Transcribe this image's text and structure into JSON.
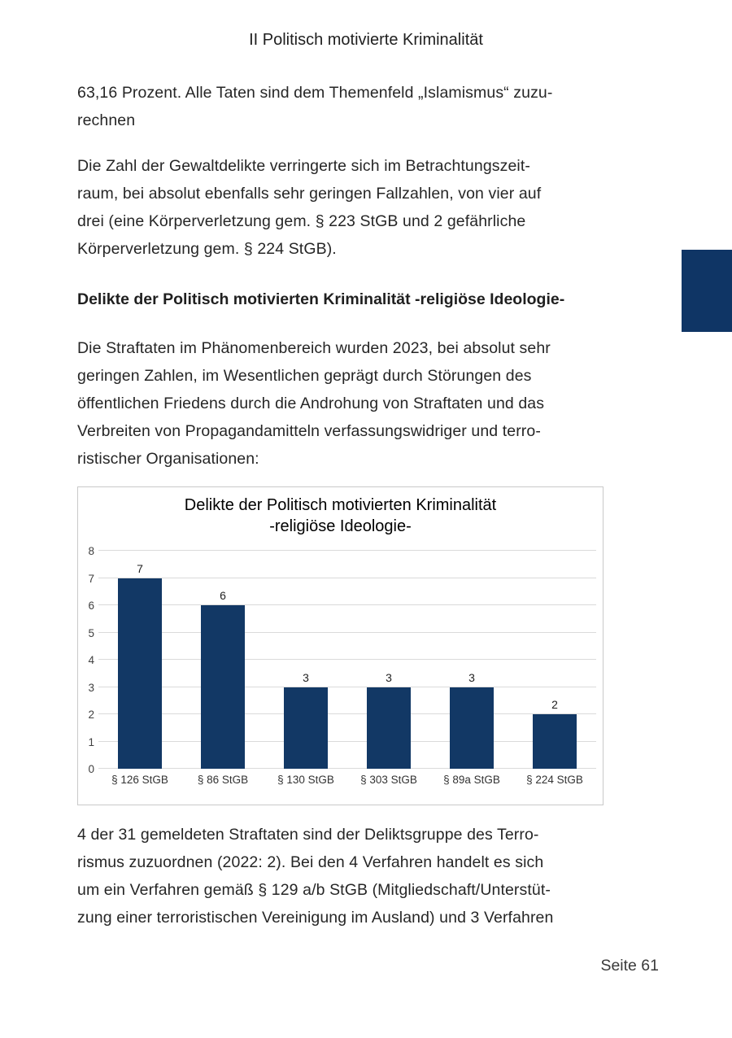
{
  "page": {
    "header": "II Politisch motivierte Kriminalität",
    "paragraph_1": "63,16 Prozent. Alle Taten sind dem Themenfeld „Islamismus“ zuzu-\nrechnen",
    "paragraph_2": "Die Zahl der Gewaltdelikte verringerte sich im Betrachtungszeit-\nraum, bei absolut ebenfalls sehr geringen Fallzahlen, von vier auf\ndrei (eine Körperverletzung gem. § 223 StGB und 2 gefährliche\nKörperverletzung gem. § 224 StGB).",
    "section_heading": "Delikte der Politisch motivierten Kriminalität -religiöse Ideologie-",
    "paragraph_3": "Die Straftaten im Phänomenbereich wurden 2023, bei absolut sehr\ngeringen Zahlen, im Wesentlichen geprägt durch Störungen des\nöffentlichen Friedens durch die Androhung von Straftaten und das\nVerbreiten von Propagandamitteln verfassungswidriger und terro-\nristischer Organisationen:",
    "paragraph_4": "4 der 31 gemeldeten Straftaten sind der Deliktsgruppe des Terro-\nrismus zuzuordnen (2022: 2). Bei den 4 Verfahren handelt es sich\num ein Verfahren gemäß § 129 a/b StGB (Mitgliedschaft/Unterstüt-\nzung einer terroristischen Vereinigung im Ausland) und 3 Verfahren",
    "page_number": "Seite 61"
  },
  "colors": {
    "accent_navy": "#123865",
    "side_tab_navy": "#0f3565",
    "gridline": "#dadada",
    "chart_border": "#c9c9c9"
  },
  "chart_data": {
    "type": "bar",
    "title": "Delikte der Politisch motivierten Kriminalität -religiöse Ideologie-",
    "title_lines": "Delikte der Politisch motivierten Kriminalität\n-religiöse Ideologie-",
    "categories": [
      "§ 126 StGB",
      "§ 86 StGB",
      "§ 130 StGB",
      "§ 303 StGB",
      "§ 89a StGB",
      "§ 224 StGB"
    ],
    "values": [
      7,
      6,
      3,
      3,
      3,
      2
    ],
    "data_labels": [
      7,
      6,
      3,
      3,
      3,
      2
    ],
    "xlabel": "",
    "ylabel": "",
    "ylim": [
      0,
      8
    ],
    "yticks": [
      0,
      1,
      2,
      3,
      4,
      5,
      6,
      7,
      8
    ],
    "grid": true,
    "legend": false,
    "bar_color": "#123865"
  }
}
